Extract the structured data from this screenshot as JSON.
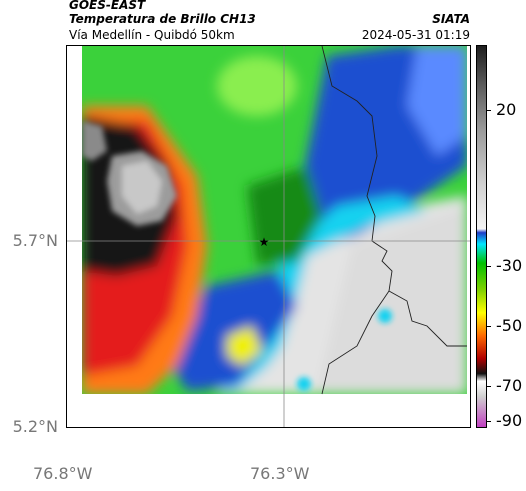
{
  "header": {
    "line1": "GOES-EAST",
    "line2": "Temperatura de Brillo CH13",
    "line3": "Vía Medellín - Quibdó 50km",
    "source": "SIATA",
    "datetime": "2024-05-31 01:19"
  },
  "axes": {
    "y_labels": [
      "5.7°N",
      "5.2°N"
    ],
    "x_labels": [
      "76.8°W",
      "76.3°W"
    ]
  },
  "colorbar": {
    "labels": [
      "20",
      "-30",
      "-50",
      "-70",
      "-90"
    ],
    "color_stops": [
      "#2a2a2a",
      "#9a9a9a",
      "#e6e6e6",
      "#ffffff",
      "#1e3cc8",
      "#00e6ff",
      "#00d000",
      "#ffff00",
      "#ff6a00",
      "#b00000",
      "#111111",
      "#d0d0d0",
      "#c040c0"
    ]
  },
  "map": {
    "marker": "★",
    "colors": {
      "land_gray": "#e4e4e4",
      "green": "#3bd13b",
      "dark_green": "#138a13",
      "blue": "#1e50d0",
      "cyan": "#14d2f0",
      "yellow": "#f0f000",
      "red": "#e41e1e",
      "orange": "#ff7a14",
      "black": "#121212",
      "gray_top": "#9c9c9c"
    }
  }
}
